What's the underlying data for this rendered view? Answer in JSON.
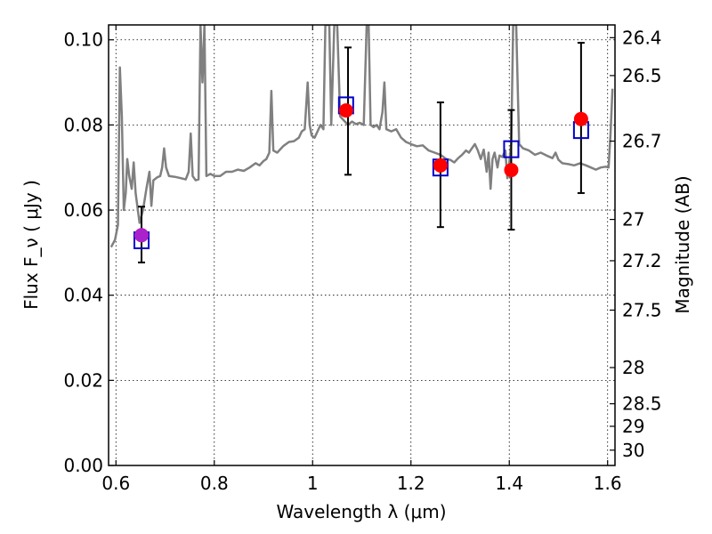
{
  "chart_data": {
    "type": "scatter",
    "xlabel": "Wavelength  λ (μm)",
    "ylabel": "Flux  F_ν  ( μJy )",
    "ylabel_right": "Magnitude (AB)",
    "xlim": [
      0.585,
      1.615
    ],
    "ylim": [
      0.0,
      0.1035
    ],
    "grid": true,
    "x_ticks": [
      0.6,
      0.8,
      1.0,
      1.2,
      1.4,
      1.6
    ],
    "x_tick_labels": [
      "0.6",
      "0.8",
      "1",
      "1.2",
      "1.4",
      "1.6"
    ],
    "y_ticks": [
      0.0,
      0.02,
      0.04,
      0.06,
      0.08,
      0.1
    ],
    "y_tick_labels": [
      "0.00",
      "0.02",
      "0.04",
      "0.06",
      "0.08",
      "0.10"
    ],
    "right_ticks": [
      {
        "label": "26.4",
        "flux": 0.1005
      },
      {
        "label": "26.5",
        "flux": 0.0916
      },
      {
        "label": "26.7",
        "flux": 0.0762
      },
      {
        "label": "27",
        "flux": 0.0578
      },
      {
        "label": "27.2",
        "flux": 0.0481
      },
      {
        "label": "27.5",
        "flux": 0.0365
      },
      {
        "label": "28",
        "flux": 0.023
      },
      {
        "label": "28.5",
        "flux": 0.0145
      },
      {
        "label": "29",
        "flux": 0.0092
      },
      {
        "label": "30",
        "flux": 0.0036
      }
    ],
    "series": [
      {
        "kind": "spectrum",
        "color": "#808080",
        "points": [
          [
            0.59,
            0.0513
          ],
          [
            0.598,
            0.053
          ],
          [
            0.604,
            0.0565
          ],
          [
            0.608,
            0.0935
          ],
          [
            0.612,
            0.082
          ],
          [
            0.616,
            0.06
          ],
          [
            0.62,
            0.064
          ],
          [
            0.623,
            0.072
          ],
          [
            0.627,
            0.068
          ],
          [
            0.632,
            0.065
          ],
          [
            0.636,
            0.0712
          ],
          [
            0.64,
            0.064
          ],
          [
            0.648,
            0.057
          ],
          [
            0.655,
            0.06
          ],
          [
            0.662,
            0.065
          ],
          [
            0.668,
            0.069
          ],
          [
            0.672,
            0.061
          ],
          [
            0.676,
            0.067
          ],
          [
            0.684,
            0.0677
          ],
          [
            0.69,
            0.068
          ],
          [
            0.694,
            0.07
          ],
          [
            0.698,
            0.0745
          ],
          [
            0.702,
            0.07
          ],
          [
            0.708,
            0.068
          ],
          [
            0.72,
            0.0678
          ],
          [
            0.732,
            0.0675
          ],
          [
            0.742,
            0.0672
          ],
          [
            0.748,
            0.069
          ],
          [
            0.752,
            0.078
          ],
          [
            0.756,
            0.068
          ],
          [
            0.762,
            0.067
          ],
          [
            0.768,
            0.0672
          ],
          [
            0.772,
            0.1035
          ],
          [
            0.776,
            0.09
          ],
          [
            0.78,
            0.1035
          ],
          [
            0.784,
            0.068
          ],
          [
            0.792,
            0.0685
          ],
          [
            0.8,
            0.068
          ],
          [
            0.812,
            0.068
          ],
          [
            0.824,
            0.069
          ],
          [
            0.836,
            0.069
          ],
          [
            0.848,
            0.0695
          ],
          [
            0.86,
            0.0692
          ],
          [
            0.872,
            0.07
          ],
          [
            0.884,
            0.071
          ],
          [
            0.892,
            0.0705
          ],
          [
            0.9,
            0.0715
          ],
          [
            0.906,
            0.072
          ],
          [
            0.912,
            0.0735
          ],
          [
            0.916,
            0.088
          ],
          [
            0.92,
            0.074
          ],
          [
            0.928,
            0.0735
          ],
          [
            0.94,
            0.075
          ],
          [
            0.952,
            0.076
          ],
          [
            0.962,
            0.0762
          ],
          [
            0.972,
            0.077
          ],
          [
            0.978,
            0.0785
          ],
          [
            0.984,
            0.079
          ],
          [
            0.99,
            0.09
          ],
          [
            0.994,
            0.08
          ],
          [
            0.998,
            0.0775
          ],
          [
            1.004,
            0.077
          ],
          [
            1.01,
            0.0785
          ],
          [
            1.016,
            0.08
          ],
          [
            1.022,
            0.079
          ],
          [
            1.026,
            0.1035
          ],
          [
            1.03,
            0.1035
          ],
          [
            1.034,
            0.1035
          ],
          [
            1.038,
            0.08
          ],
          [
            1.044,
            0.1035
          ],
          [
            1.05,
            0.1035
          ],
          [
            1.056,
            0.082
          ],
          [
            1.064,
            0.081
          ],
          [
            1.072,
            0.08
          ],
          [
            1.08,
            0.0808
          ],
          [
            1.088,
            0.0802
          ],
          [
            1.096,
            0.0805
          ],
          [
            1.104,
            0.08
          ],
          [
            1.11,
            0.1035
          ],
          [
            1.114,
            0.1035
          ],
          [
            1.118,
            0.08
          ],
          [
            1.124,
            0.0795
          ],
          [
            1.13,
            0.08
          ],
          [
            1.136,
            0.079
          ],
          [
            1.142,
            0.083
          ],
          [
            1.146,
            0.09
          ],
          [
            1.15,
            0.079
          ],
          [
            1.16,
            0.0785
          ],
          [
            1.17,
            0.079
          ],
          [
            1.18,
            0.077
          ],
          [
            1.19,
            0.076
          ],
          [
            1.2,
            0.0755
          ],
          [
            1.212,
            0.075
          ],
          [
            1.224,
            0.0752
          ],
          [
            1.236,
            0.074
          ],
          [
            1.248,
            0.0735
          ],
          [
            1.26,
            0.073
          ],
          [
            1.272,
            0.072
          ],
          [
            1.28,
            0.0718
          ],
          [
            1.288,
            0.0712
          ],
          [
            1.296,
            0.0722
          ],
          [
            1.304,
            0.073
          ],
          [
            1.312,
            0.074
          ],
          [
            1.318,
            0.0735
          ],
          [
            1.324,
            0.0745
          ],
          [
            1.33,
            0.0755
          ],
          [
            1.336,
            0.074
          ],
          [
            1.342,
            0.072
          ],
          [
            1.348,
            0.0742
          ],
          [
            1.354,
            0.069
          ],
          [
            1.358,
            0.0735
          ],
          [
            1.362,
            0.065
          ],
          [
            1.366,
            0.072
          ],
          [
            1.37,
            0.0735
          ],
          [
            1.376,
            0.07
          ],
          [
            1.38,
            0.0728
          ],
          [
            1.386,
            0.0725
          ],
          [
            1.392,
            0.074
          ],
          [
            1.396,
            0.0675
          ],
          [
            1.4,
            0.071
          ],
          [
            1.404,
            0.0755
          ],
          [
            1.408,
            0.1035
          ],
          [
            1.414,
            0.1035
          ],
          [
            1.42,
            0.0755
          ],
          [
            1.428,
            0.0745
          ],
          [
            1.44,
            0.074
          ],
          [
            1.452,
            0.073
          ],
          [
            1.464,
            0.0735
          ],
          [
            1.476,
            0.0728
          ],
          [
            1.488,
            0.0722
          ],
          [
            1.494,
            0.0735
          ],
          [
            1.5,
            0.0718
          ],
          [
            1.508,
            0.071
          ],
          [
            1.52,
            0.0708
          ],
          [
            1.532,
            0.0705
          ],
          [
            1.544,
            0.071
          ],
          [
            1.556,
            0.0705
          ],
          [
            1.566,
            0.07
          ],
          [
            1.576,
            0.0695
          ],
          [
            1.586,
            0.07
          ],
          [
            1.596,
            0.0702
          ],
          [
            1.602,
            0.07
          ],
          [
            1.606,
            0.078
          ],
          [
            1.61,
            0.0885
          ]
        ]
      },
      {
        "kind": "errorbar",
        "color": "#000000",
        "points": [
          {
            "x": 0.652,
            "lo": 0.0477,
            "hi": 0.0608
          },
          {
            "x": 1.072,
            "lo": 0.0683,
            "hi": 0.0982
          },
          {
            "x": 1.26,
            "lo": 0.056,
            "hi": 0.0853
          },
          {
            "x": 1.404,
            "lo": 0.0554,
            "hi": 0.0835
          },
          {
            "x": 1.546,
            "lo": 0.064,
            "hi": 0.0993
          }
        ]
      },
      {
        "kind": "model-squares",
        "color": "#0000cc",
        "points": [
          [
            0.652,
            0.0529
          ],
          [
            1.068,
            0.0846
          ],
          [
            1.26,
            0.07
          ],
          [
            1.404,
            0.0743
          ],
          [
            1.546,
            0.0788
          ]
        ]
      },
      {
        "kind": "observed-dots",
        "color": "#ff0000",
        "points": [
          [
            0.652,
            0.0541
          ],
          [
            1.068,
            0.0834
          ],
          [
            1.26,
            0.0705
          ],
          [
            1.404,
            0.0694
          ],
          [
            1.546,
            0.0814
          ]
        ]
      },
      {
        "kind": "highlight-dot",
        "color": "#aa22cc",
        "points": [
          [
            0.652,
            0.0541
          ]
        ]
      }
    ]
  }
}
